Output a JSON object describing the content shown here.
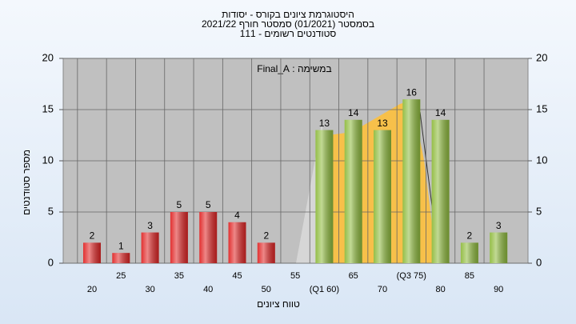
{
  "chart_data": {
    "type": "bar",
    "title": "היסטוגרמת ציונים בקורס - יסודות",
    "subtitle": "בסמסטר  (01/2021)  סמסטר חורף  2021/22",
    "subtitle2": "סטודנטים רשומים - 111",
    "annotation": "במשימה : Final_A",
    "x_label": "טווח ציונים",
    "y_label": "מספר סטודנטים",
    "categories": [
      "20",
      "25",
      "30",
      "35",
      "40",
      "45",
      "50",
      "55",
      "(Q1 60)",
      "65",
      "70",
      "(Q3 75)",
      "80",
      "85",
      "90"
    ],
    "values": [
      2,
      1,
      3,
      5,
      5,
      4,
      2,
      null,
      13,
      14,
      13,
      16,
      14,
      2,
      3
    ],
    "colors": [
      "#e02626",
      "#e02626",
      "#e02626",
      "#e02626",
      "#e02626",
      "#e02626",
      "#e02626",
      "#e02626",
      "#8fbb3e",
      "#8fbb3e",
      "#8fbb3e",
      "#8fbb3e",
      "#8fbb3e",
      "#8fbb3e",
      "#8fbb3e"
    ],
    "ylim": [
      0,
      20
    ],
    "yticks": [
      0,
      5,
      10,
      15,
      20
    ],
    "y2lim": [
      0,
      20
    ],
    "y2ticks": [
      0,
      5,
      10,
      15,
      20
    ],
    "grid": true
  }
}
